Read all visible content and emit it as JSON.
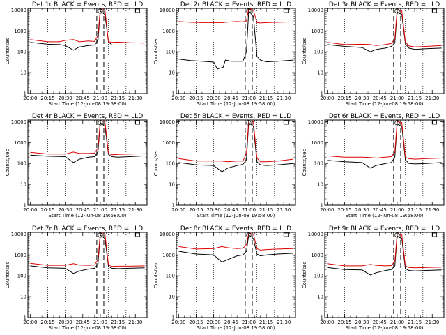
{
  "colors": {
    "events": "#000000",
    "lld": "#dd0000",
    "background": "#ffffff"
  },
  "chart_data": [
    {
      "type": "line",
      "title": "Det 1r BLACK = Events, RED = LLD",
      "xlabel": "Start Time (12-Jun-08 19:58:00)",
      "ylabel": "Counts/sec",
      "x_ticks": [
        "20:00",
        "20:15",
        "20:30",
        "20:45",
        "21:00",
        "21:15",
        "21:30"
      ],
      "y_scale": "log",
      "ylim": [
        1,
        10000
      ],
      "y_ticks": [
        "1",
        "10",
        "100",
        "1000",
        "10000"
      ],
      "x": [
        "20:00",
        "20:15",
        "20:25",
        "20:30",
        "20:37",
        "20:42",
        "20:50",
        "20:55",
        "20:58",
        "21:00",
        "21:04",
        "21:07",
        "21:10",
        "21:15",
        "21:25",
        "21:38"
      ],
      "series": [
        {
          "name": "Events",
          "values": [
            280,
            230,
            220,
            200,
            120,
            170,
            200,
            210,
            350,
            9000,
            6000,
            300,
            210,
            210,
            210,
            210
          ]
        },
        {
          "name": "LLD",
          "values": [
            380,
            300,
            300,
            350,
            380,
            300,
            330,
            310,
            600,
            11000,
            10000,
            300,
            280,
            290,
            270,
            260
          ]
        }
      ]
    },
    {
      "type": "line",
      "title": "Det 2r BLACK = Events, RED = LLD",
      "xlabel": "Start Time (12-Jun-08 19:58:00)",
      "ylabel": "Counts/sec",
      "x_ticks": [
        "20:00",
        "20:15",
        "20:30",
        "20:45",
        "21:00",
        "21:15",
        "21:30"
      ],
      "y_scale": "log",
      "ylim": [
        1,
        10000
      ],
      "y_ticks": [
        "1",
        "10",
        "100",
        "1000",
        "10000"
      ],
      "x": [
        "20:00",
        "20:10",
        "20:20",
        "20:30",
        "20:33",
        "20:38",
        "20:40",
        "20:45",
        "20:50",
        "20:55",
        "20:58",
        "21:00",
        "21:04",
        "21:07",
        "21:10",
        "21:15",
        "21:25",
        "21:38"
      ],
      "series": [
        {
          "name": "Events",
          "values": [
            45,
            38,
            35,
            32,
            15,
            18,
            40,
            35,
            35,
            35,
            100,
            9000,
            5000,
            60,
            40,
            33,
            35,
            40
          ]
        },
        {
          "name": "LLD",
          "values": [
            2800,
            2600,
            2500,
            2500,
            2500,
            2500,
            2600,
            2700,
            2800,
            2700,
            3000,
            12000,
            10000,
            2500,
            2400,
            2500,
            2600,
            2700
          ]
        }
      ]
    },
    {
      "type": "line",
      "title": "Det 3r BLACK = Events, RED = LLD",
      "xlabel": "Start Time (12-Jun-08 19:58:00)",
      "ylabel": "Counts/sec",
      "x_ticks": [
        "20:00",
        "20:15",
        "20:30",
        "20:45",
        "21:00",
        "21:15",
        "21:30"
      ],
      "y_scale": "log",
      "ylim": [
        1,
        10000
      ],
      "y_ticks": [
        "1",
        "10",
        "100",
        "1000",
        "10000"
      ],
      "x": [
        "20:00",
        "20:15",
        "20:30",
        "20:37",
        "20:42",
        "20:50",
        "20:55",
        "20:58",
        "21:00",
        "21:04",
        "21:07",
        "21:10",
        "21:15",
        "21:25",
        "21:38"
      ],
      "series": [
        {
          "name": "Events",
          "values": [
            220,
            180,
            160,
            100,
            130,
            150,
            180,
            260,
            8000,
            6000,
            250,
            150,
            130,
            140,
            150
          ]
        },
        {
          "name": "LLD",
          "values": [
            280,
            220,
            230,
            220,
            200,
            220,
            250,
            420,
            10000,
            9000,
            300,
            190,
            170,
            180,
            200
          ]
        }
      ]
    },
    {
      "type": "line",
      "title": "Det 4r BLACK = Events, RED = LLD",
      "xlabel": "Start Time (12-Jun-08 19:58:00)",
      "ylabel": "Counts/sec",
      "x_ticks": [
        "20:00",
        "20:15",
        "20:30",
        "20:45",
        "21:00",
        "21:15",
        "21:30"
      ],
      "y_scale": "log",
      "ylim": [
        1,
        10000
      ],
      "y_ticks": [
        "1",
        "10",
        "100",
        "1000",
        "10000"
      ],
      "x": [
        "20:00",
        "20:15",
        "20:30",
        "20:37",
        "20:42",
        "20:50",
        "20:55",
        "20:58",
        "21:00",
        "21:04",
        "21:07",
        "21:10",
        "21:15",
        "21:25",
        "21:38"
      ],
      "series": [
        {
          "name": "Events",
          "values": [
            250,
            220,
            210,
            110,
            160,
            200,
            210,
            350,
            9000,
            6000,
            270,
            210,
            200,
            210,
            230
          ]
        },
        {
          "name": "LLD",
          "values": [
            340,
            280,
            280,
            350,
            300,
            300,
            310,
            550,
            11000,
            10000,
            300,
            260,
            270,
            280,
            290
          ]
        }
      ]
    },
    {
      "type": "line",
      "title": "Det 5r BLACK = Events, RED = LLD",
      "xlabel": "Start Time (12-Jun-08 19:58:00)",
      "ylabel": "Counts/sec",
      "x_ticks": [
        "20:00",
        "20:15",
        "20:30",
        "20:45",
        "21:00",
        "21:15",
        "21:30"
      ],
      "y_scale": "log",
      "ylim": [
        1,
        10000
      ],
      "y_ticks": [
        "1",
        "10",
        "100",
        "1000",
        "10000"
      ],
      "x": [
        "20:00",
        "20:15",
        "20:30",
        "20:37",
        "20:42",
        "20:50",
        "20:55",
        "20:58",
        "21:00",
        "21:04",
        "21:07",
        "21:10",
        "21:15",
        "21:25",
        "21:38"
      ],
      "series": [
        {
          "name": "Events",
          "values": [
            110,
            85,
            80,
            40,
            60,
            80,
            90,
            150,
            9000,
            6000,
            120,
            85,
            80,
            85,
            100
          ]
        },
        {
          "name": "LLD",
          "values": [
            170,
            130,
            130,
            130,
            120,
            130,
            130,
            300,
            11000,
            10000,
            180,
            120,
            120,
            130,
            160
          ]
        }
      ]
    },
    {
      "type": "line",
      "title": "Det 6r BLACK = Events, RED = LLD",
      "xlabel": "Start Time (12-Jun-08 19:58:00)",
      "ylabel": "Counts/sec",
      "x_ticks": [
        "20:00",
        "20:15",
        "20:30",
        "20:45",
        "21:00",
        "21:15",
        "21:30"
      ],
      "y_scale": "log",
      "ylim": [
        1,
        10000
      ],
      "y_ticks": [
        "1",
        "10",
        "100",
        "1000",
        "10000"
      ],
      "x": [
        "20:00",
        "20:15",
        "20:30",
        "20:37",
        "20:42",
        "20:50",
        "20:55",
        "20:58",
        "21:00",
        "21:04",
        "21:07",
        "21:10",
        "21:15",
        "21:25",
        "21:38"
      ],
      "series": [
        {
          "name": "Events",
          "values": [
            140,
            120,
            110,
            60,
            80,
            100,
            110,
            200,
            8000,
            6000,
            150,
            100,
            95,
            100,
            110
          ]
        },
        {
          "name": "LLD",
          "values": [
            230,
            200,
            200,
            190,
            180,
            200,
            210,
            350,
            10000,
            9000,
            200,
            170,
            160,
            170,
            180
          ]
        }
      ]
    },
    {
      "type": "line",
      "title": "Det 7r BLACK = Events, RED = LLD",
      "xlabel": "Start Time (12-Jun-08 19:58:00)",
      "ylabel": "Counts/sec",
      "x_ticks": [
        "20:00",
        "20:15",
        "20:30",
        "20:45",
        "21:00",
        "21:15",
        "21:30"
      ],
      "y_scale": "log",
      "ylim": [
        1,
        10000
      ],
      "y_ticks": [
        "1",
        "10",
        "100",
        "1000",
        "10000"
      ],
      "x": [
        "20:00",
        "20:15",
        "20:30",
        "20:37",
        "20:42",
        "20:50",
        "20:55",
        "20:58",
        "21:00",
        "21:04",
        "21:07",
        "21:10",
        "21:15",
        "21:25",
        "21:38"
      ],
      "series": [
        {
          "name": "Events",
          "values": [
            300,
            240,
            230,
            130,
            170,
            210,
            230,
            360,
            9000,
            6000,
            280,
            230,
            220,
            230,
            240
          ]
        },
        {
          "name": "LLD",
          "values": [
            400,
            320,
            320,
            380,
            330,
            320,
            330,
            600,
            11000,
            10000,
            330,
            280,
            290,
            290,
            300
          ]
        }
      ]
    },
    {
      "type": "line",
      "title": "Det 8r BLACK = Events, RED = LLD",
      "xlabel": "Start Time (12-Jun-08 19:58:00)",
      "ylabel": "Counts/sec",
      "x_ticks": [
        "20:00",
        "20:15",
        "20:30",
        "20:45",
        "21:00",
        "21:15",
        "21:30"
      ],
      "y_scale": "log",
      "ylim": [
        1,
        10000
      ],
      "y_ticks": [
        "1",
        "10",
        "100",
        "1000",
        "10000"
      ],
      "x": [
        "20:00",
        "20:15",
        "20:30",
        "20:37",
        "20:42",
        "20:50",
        "20:55",
        "20:58",
        "21:00",
        "21:04",
        "21:07",
        "21:10",
        "21:15",
        "21:25",
        "21:38"
      ],
      "series": [
        {
          "name": "Events",
          "values": [
            1500,
            1100,
            1000,
            450,
            600,
            900,
            1000,
            1500,
            9000,
            6000,
            1100,
            900,
            1000,
            1100,
            1200
          ]
        },
        {
          "name": "LLD",
          "values": [
            2500,
            1900,
            2000,
            2500,
            2200,
            2000,
            2100,
            3000,
            11000,
            10000,
            2000,
            1700,
            1800,
            1900,
            2000
          ]
        }
      ]
    },
    {
      "type": "line",
      "title": "Det 9r BLACK = Events, RED = LLD",
      "xlabel": "Start Time (12-Jun-08 19:58:00)",
      "ylabel": "Counts/sec",
      "x_ticks": [
        "20:00",
        "20:15",
        "20:30",
        "20:45",
        "21:00",
        "21:15",
        "21:30"
      ],
      "y_scale": "log",
      "ylim": [
        1,
        10000
      ],
      "y_ticks": [
        "1",
        "10",
        "100",
        "1000",
        "10000"
      ],
      "x": [
        "20:00",
        "20:15",
        "20:30",
        "20:37",
        "20:42",
        "20:50",
        "20:55",
        "20:58",
        "21:00",
        "21:04",
        "21:07",
        "21:10",
        "21:15",
        "21:25",
        "21:38"
      ],
      "series": [
        {
          "name": "Events",
          "values": [
            250,
            200,
            190,
            110,
            140,
            180,
            200,
            300,
            8000,
            6000,
            220,
            180,
            170,
            180,
            190
          ]
        },
        {
          "name": "LLD",
          "values": [
            380,
            300,
            300,
            350,
            320,
            300,
            310,
            500,
            10000,
            9000,
            300,
            250,
            240,
            250,
            260
          ]
        }
      ]
    }
  ]
}
